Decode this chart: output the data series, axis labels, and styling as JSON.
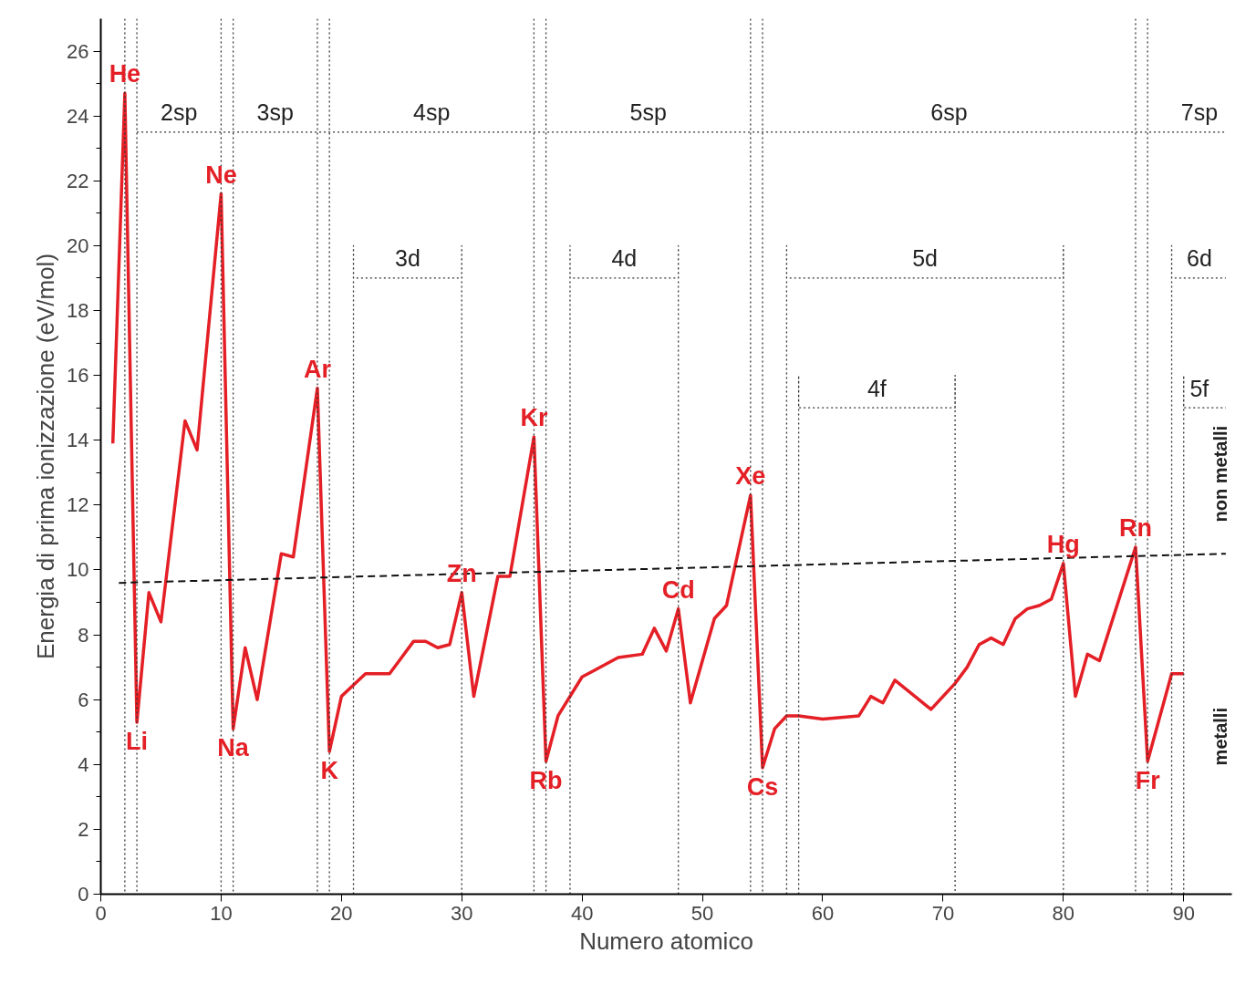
{
  "chart_data": {
    "type": "line",
    "xlabel": "Numero atomico",
    "ylabel": "Energia di prima ionizzazione (eV/mol)",
    "xlim": [
      0,
      94
    ],
    "ylim": [
      0,
      27
    ],
    "xticks": [
      0,
      10,
      20,
      30,
      40,
      50,
      60,
      70,
      80,
      90
    ],
    "yticks": [
      0,
      2,
      4,
      6,
      8,
      10,
      12,
      14,
      16,
      18,
      20,
      22,
      24,
      26
    ],
    "grid": false,
    "marker": "none",
    "series": [
      {
        "color": "#e41f26",
        "line_style": "solid",
        "x": [
          1,
          2,
          3,
          4,
          5,
          7,
          8,
          10,
          11,
          12,
          13,
          15,
          16,
          18,
          19,
          20,
          22,
          24,
          25,
          26,
          27,
          28,
          29,
          30,
          31,
          33,
          34,
          36,
          37,
          38,
          40,
          41,
          43,
          45,
          46,
          47,
          48,
          49,
          51,
          52,
          54,
          55,
          56,
          57,
          58,
          60,
          63,
          64,
          65,
          66,
          69,
          71,
          72,
          73,
          74,
          75,
          76,
          77,
          78,
          79,
          80,
          81,
          82,
          83,
          86,
          87,
          89,
          90
        ],
        "values": [
          13.9,
          24.7,
          5.3,
          9.3,
          8.4,
          14.6,
          13.7,
          21.6,
          5.1,
          7.6,
          6.0,
          10.5,
          10.4,
          15.6,
          4.4,
          6.1,
          6.8,
          6.8,
          7.3,
          7.8,
          7.8,
          7.6,
          7.7,
          9.3,
          6.1,
          9.8,
          9.8,
          14.1,
          4.1,
          5.5,
          6.7,
          6.9,
          7.3,
          7.4,
          8.2,
          7.5,
          8.8,
          5.9,
          8.5,
          8.9,
          12.3,
          3.9,
          5.1,
          5.5,
          5.5,
          5.4,
          5.5,
          6.1,
          5.9,
          6.6,
          5.7,
          6.5,
          7.0,
          7.7,
          7.9,
          7.7,
          8.5,
          8.8,
          8.9,
          9.1,
          10.2,
          6.1,
          7.4,
          7.2,
          10.7,
          4.1,
          6.8,
          6.8
        ]
      },
      {
        "color": "#111111",
        "line_style": "dashed",
        "x": [
          1.5,
          93.5
        ],
        "values": [
          9.6,
          10.5
        ]
      },
      {
        "color": "#333333",
        "line_style": "dotted",
        "x": [
          3,
          93.5
        ],
        "values": [
          23.5,
          23.5
        ]
      },
      {
        "color": "#333333",
        "line_style": "dotted",
        "x": [
          21,
          21,
          21,
          30,
          30,
          30
        ],
        "values": [
          0,
          20,
          19,
          19,
          20,
          0
        ]
      },
      {
        "color": "#333333",
        "line_style": "dotted",
        "x": [
          39,
          39,
          39,
          48,
          48,
          48
        ],
        "values": [
          0,
          20,
          19,
          19,
          20,
          0
        ]
      },
      {
        "color": "#333333",
        "line_style": "dotted",
        "x": [
          57,
          57,
          57,
          80,
          80,
          80
        ],
        "values": [
          0,
          20,
          19,
          19,
          20,
          0
        ]
      },
      {
        "color": "#333333",
        "line_style": "dotted",
        "x": [
          89,
          89,
          89,
          93.5
        ],
        "values": [
          0,
          20,
          19,
          19
        ]
      },
      {
        "color": "#333333",
        "line_style": "dotted",
        "x": [
          58,
          58,
          58,
          71,
          71,
          71
        ],
        "values": [
          0,
          16,
          15,
          15,
          16,
          0
        ]
      },
      {
        "color": "#333333",
        "line_style": "dotted",
        "x": [
          90,
          90,
          90,
          93.5
        ],
        "values": [
          0,
          16,
          15,
          15
        ]
      }
    ],
    "ref_lines": [
      {
        "axis": "x",
        "value": 2,
        "color": "#333333",
        "line_style": "dotted"
      },
      {
        "axis": "x",
        "value": 3,
        "color": "#333333",
        "line_style": "dotted"
      },
      {
        "axis": "x",
        "value": 10,
        "color": "#333333",
        "line_style": "dotted"
      },
      {
        "axis": "x",
        "value": 11,
        "color": "#333333",
        "line_style": "dotted"
      },
      {
        "axis": "x",
        "value": 18,
        "color": "#333333",
        "line_style": "dotted"
      },
      {
        "axis": "x",
        "value": 19,
        "color": "#333333",
        "line_style": "dotted"
      },
      {
        "axis": "x",
        "value": 36,
        "color": "#333333",
        "line_style": "dotted"
      },
      {
        "axis": "x",
        "value": 37,
        "color": "#333333",
        "line_style": "dotted"
      },
      {
        "axis": "x",
        "value": 54,
        "color": "#333333",
        "line_style": "dotted"
      },
      {
        "axis": "x",
        "value": 55,
        "color": "#333333",
        "line_style": "dotted"
      },
      {
        "axis": "x",
        "value": 86,
        "color": "#333333",
        "line_style": "dotted"
      },
      {
        "axis": "x",
        "value": 87,
        "color": "#333333",
        "line_style": "dotted"
      }
    ],
    "annotations": [
      {
        "text": "He",
        "x": 2,
        "y": 24.7
      },
      {
        "text": "Li",
        "x": 3,
        "y": 5.3
      },
      {
        "text": "Ne",
        "x": 10,
        "y": 21.6
      },
      {
        "text": "Na",
        "x": 11,
        "y": 5.1
      },
      {
        "text": "Ar",
        "x": 18,
        "y": 15.6
      },
      {
        "text": "K",
        "x": 19,
        "y": 4.4
      },
      {
        "text": "Zn",
        "x": 30,
        "y": 9.3
      },
      {
        "text": "Kr",
        "x": 36,
        "y": 14.1
      },
      {
        "text": "Rb",
        "x": 37,
        "y": 4.1
      },
      {
        "text": "Cd",
        "x": 48,
        "y": 8.8
      },
      {
        "text": "Xe",
        "x": 54,
        "y": 12.3
      },
      {
        "text": "Cs",
        "x": 55,
        "y": 3.9
      },
      {
        "text": "Hg",
        "x": 80,
        "y": 10.2
      },
      {
        "text": "Rn",
        "x": 86,
        "y": 10.7
      },
      {
        "text": "Fr",
        "x": 87,
        "y": 4.1
      },
      {
        "text": "2sp",
        "x": 6.5,
        "y": 23.6
      },
      {
        "text": "3sp",
        "x": 14.5,
        "y": 23.6
      },
      {
        "text": "4sp",
        "x": 27.5,
        "y": 23.6
      },
      {
        "text": "5sp",
        "x": 45.5,
        "y": 23.6
      },
      {
        "text": "6sp",
        "x": 70.5,
        "y": 23.6
      },
      {
        "text": "7sp",
        "x": 91.3,
        "y": 23.6
      },
      {
        "text": "3d",
        "x": 25.5,
        "y": 19.1
      },
      {
        "text": "4d",
        "x": 43.5,
        "y": 19.1
      },
      {
        "text": "5d",
        "x": 68.5,
        "y": 19.1
      },
      {
        "text": "6d",
        "x": 91.3,
        "y": 19.1
      },
      {
        "text": "4f",
        "x": 64.5,
        "y": 15.1
      },
      {
        "text": "5f",
        "x": 91.3,
        "y": 15.1
      },
      "non metalli",
      "metalli"
    ]
  }
}
